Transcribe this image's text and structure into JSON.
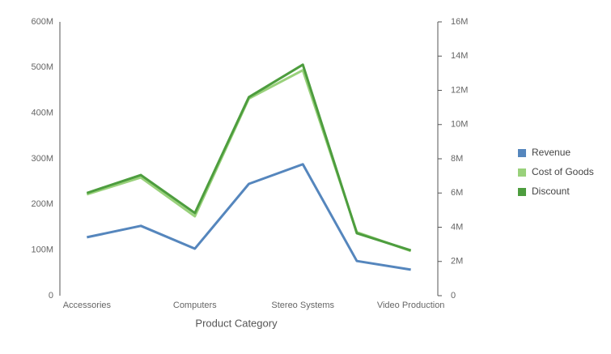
{
  "chart_data": {
    "type": "line",
    "x_label": "Product Category",
    "categories": [
      "Accessories",
      null,
      "Computers",
      null,
      "Stereo Systems",
      null,
      "Video Production"
    ],
    "series": [
      {
        "name": "Revenue",
        "color": "#5586bd",
        "values": [
          128000000,
          153000000,
          103000000,
          245000000,
          288000000,
          76000000,
          57000000
        ]
      },
      {
        "name": "Cost of Goods",
        "color": "#99d17b",
        "values": [
          222000000,
          259000000,
          174000000,
          432000000,
          494000000,
          139000000,
          98000000
        ]
      },
      {
        "name": "Discount",
        "color": "#4d9d3e",
        "axis": "y2",
        "values": [
          6000000,
          7050000,
          4830000,
          11600000,
          13500000,
          3650000,
          2650000
        ]
      }
    ],
    "ylim": [
      0,
      600000000
    ],
    "yticks": [
      0,
      {
        "value": 100000000,
        "label": "100M"
      },
      {
        "value": 200000000,
        "label": "200M"
      },
      {
        "value": 300000000,
        "label": "300M"
      },
      {
        "value": 400000000,
        "label": "400M"
      },
      {
        "value": 500000000,
        "label": "500M"
      },
      {
        "value": 600000000,
        "label": "600M"
      }
    ],
    "y2lim": [
      0,
      16000000
    ],
    "y2ticks": [
      0,
      {
        "value": 2000000,
        "label": "2M"
      },
      {
        "value": 4000000,
        "label": "4M"
      },
      {
        "value": 6000000,
        "label": "6M"
      },
      {
        "value": 8000000,
        "label": "8M"
      },
      {
        "value": 10000000,
        "label": "10M"
      },
      {
        "value": 12000000,
        "label": "12M"
      },
      {
        "value": 14000000,
        "label": "14M"
      },
      {
        "value": 16000000,
        "label": "16M"
      }
    ],
    "legend": "right"
  }
}
